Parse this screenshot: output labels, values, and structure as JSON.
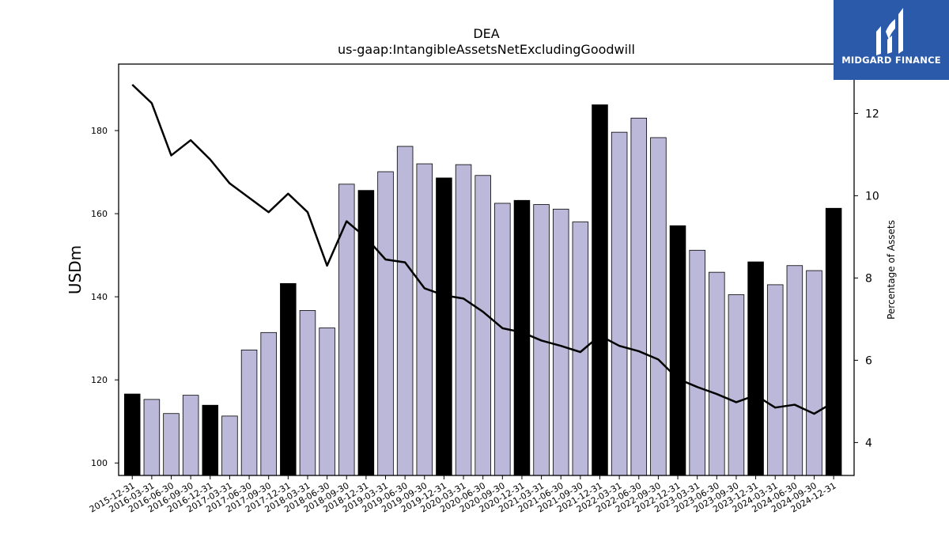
{
  "chart_data": {
    "type": "bar+line",
    "title": "DEA",
    "subtitle": "us-gaap:IntangibleAssetsNetExcludingGoodwill",
    "ylabel": "USDm",
    "y2label": "Percentage of Assets",
    "ylim": [
      97,
      196
    ],
    "y2lim": [
      3.2,
      13.2
    ],
    "yticks": [
      100,
      120,
      140,
      160,
      180
    ],
    "y2ticks": [
      4,
      6,
      8,
      10,
      12
    ],
    "categories": [
      "2015-12-31",
      "2016-03-31",
      "2016-06-30",
      "2016-09-30",
      "2016-12-31",
      "2017-03-31",
      "2017-06-30",
      "2017-09-30",
      "2017-12-31",
      "2018-03-31",
      "2018-06-30",
      "2018-09-30",
      "2018-12-31",
      "2019-03-31",
      "2019-06-30",
      "2019-09-30",
      "2019-12-31",
      "2020-03-31",
      "2020-06-30",
      "2020-09-30",
      "2020-12-31",
      "2021-03-31",
      "2021-06-30",
      "2021-09-30",
      "2021-12-31",
      "2022-03-31",
      "2022-06-30",
      "2022-09-30",
      "2022-12-31",
      "2023-03-31",
      "2023-06-30",
      "2023-09-30",
      "2023-12-31",
      "2024-03-31",
      "2024-06-30",
      "2024-09-30",
      "2024-12-31"
    ],
    "series": [
      {
        "kind": "bar",
        "values": [
          116.6,
          115.3,
          111.9,
          116.3,
          113.9,
          111.3,
          127.2,
          131.4,
          143.2,
          136.7,
          132.5,
          167.1,
          165.6,
          170.1,
          176.2,
          172.0,
          168.6,
          171.8,
          169.2,
          162.5,
          163.2,
          162.2,
          161.1,
          158.0,
          186.2,
          179.6,
          183.0,
          178.3,
          157.1,
          151.2,
          145.9,
          140.5,
          148.4,
          142.9,
          147.5,
          146.3,
          161.3
        ],
        "highlight": [
          true,
          false,
          false,
          false,
          true,
          false,
          false,
          false,
          true,
          false,
          false,
          false,
          true,
          false,
          false,
          false,
          true,
          false,
          false,
          false,
          true,
          false,
          false,
          false,
          true,
          false,
          false,
          false,
          true,
          false,
          false,
          false,
          true,
          false,
          false,
          false,
          true
        ]
      },
      {
        "kind": "line",
        "axis": "right",
        "values": [
          12.7,
          12.25,
          10.98,
          11.35,
          10.88,
          10.3,
          9.95,
          9.6,
          10.05,
          9.6,
          8.3,
          9.38,
          8.98,
          8.45,
          8.38,
          7.75,
          7.58,
          7.5,
          7.18,
          6.78,
          6.68,
          6.48,
          6.35,
          6.2,
          6.6,
          6.35,
          6.22,
          6.02,
          5.55,
          5.35,
          5.18,
          4.98,
          5.15,
          4.85,
          4.92,
          4.7,
          4.98
        ]
      }
    ],
    "colors": {
      "bar": "#bcb8da",
      "bar_highlight": "#000000",
      "line": "#000000"
    },
    "grid": false,
    "legend": "none"
  },
  "logo": {
    "text": "MIDGARD FINANCE",
    "color": "#2b5aab"
  }
}
